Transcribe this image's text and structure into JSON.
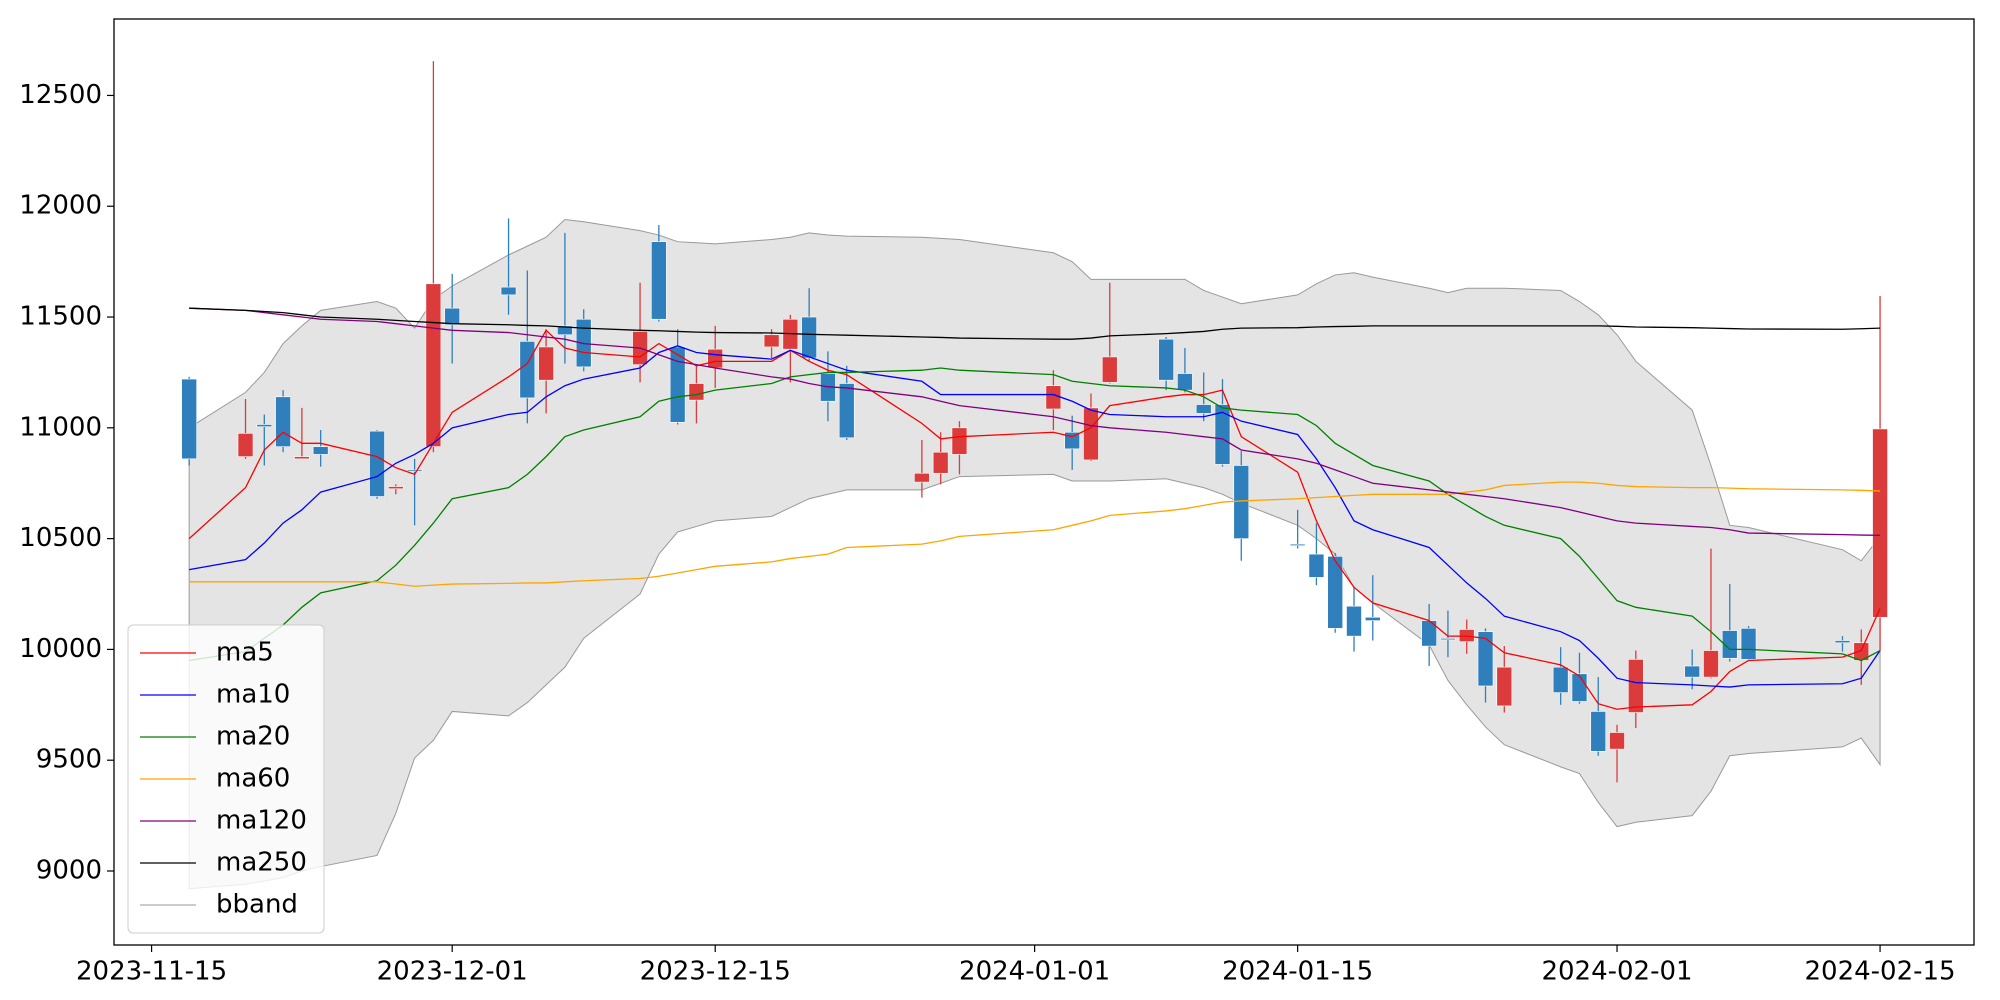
{
  "chart_data": {
    "type": "candlestick",
    "x": [
      "2023-11-17",
      "2023-11-20",
      "2023-11-21",
      "2023-11-22",
      "2023-11-23",
      "2023-11-24",
      "2023-11-27",
      "2023-11-28",
      "2023-11-29",
      "2023-11-30",
      "2023-12-01",
      "2023-12-04",
      "2023-12-05",
      "2023-12-06",
      "2023-12-07",
      "2023-12-08",
      "2023-12-11",
      "2023-12-12",
      "2023-12-13",
      "2023-12-14",
      "2023-12-15",
      "2023-12-18",
      "2023-12-19",
      "2023-12-20",
      "2023-12-21",
      "2023-12-22",
      "2023-12-26",
      "2023-12-27",
      "2023-12-28",
      "2024-01-02",
      "2024-01-03",
      "2024-01-04",
      "2024-01-05",
      "2024-01-08",
      "2024-01-09",
      "2024-01-10",
      "2024-01-11",
      "2024-01-12",
      "2024-01-15",
      "2024-01-16",
      "2024-01-17",
      "2024-01-18",
      "2024-01-19",
      "2024-01-22",
      "2024-01-23",
      "2024-01-24",
      "2024-01-25",
      "2024-01-26",
      "2024-01-29",
      "2024-01-30",
      "2024-01-31",
      "2024-02-01",
      "2024-02-02",
      "2024-02-05",
      "2024-02-06",
      "2024-02-07",
      "2024-02-08",
      "2024-02-13",
      "2024-02-14",
      "2024-02-15"
    ],
    "open": [
      11220,
      10870,
      11015,
      11140,
      10860,
      10915,
      10985,
      10725,
      10810,
      10915,
      11540,
      11635,
      11390,
      11215,
      11460,
      11490,
      11285,
      11840,
      11365,
      11125,
      11270,
      11365,
      11355,
      11500,
      11245,
      11200,
      10755,
      10795,
      10880,
      11085,
      10980,
      10855,
      11205,
      11400,
      11245,
      11105,
      11105,
      10830,
      10475,
      10430,
      10420,
      10195,
      10145,
      10130,
      10050,
      10035,
      10080,
      9745,
      9920,
      9890,
      9720,
      9550,
      9715,
      9925,
      9875,
      10085,
      10095,
      10040,
      9950,
      10145
    ],
    "high": [
      11230,
      11130,
      11060,
      11170,
      11090,
      10990,
      10990,
      10745,
      10860,
      12655,
      11695,
      11945,
      11710,
      11445,
      11880,
      11535,
      11655,
      11915,
      11445,
      11285,
      11460,
      11445,
      11510,
      11630,
      11345,
      11280,
      10945,
      10980,
      11030,
      11260,
      11055,
      11155,
      11655,
      11410,
      11360,
      11250,
      11220,
      10895,
      10630,
      10570,
      10435,
      10285,
      10335,
      10205,
      10175,
      10135,
      10095,
      10015,
      10010,
      9985,
      9875,
      9660,
      9995,
      10000,
      10455,
      10295,
      10105,
      10060,
      10090,
      11595
    ],
    "low": [
      10830,
      10860,
      10830,
      10890,
      10860,
      10825,
      10680,
      10700,
      10560,
      10890,
      11290,
      11510,
      11020,
      11065,
      11290,
      11255,
      11205,
      11480,
      11015,
      11020,
      11180,
      11315,
      11205,
      11300,
      11030,
      10945,
      10685,
      10745,
      10790,
      10990,
      10810,
      10850,
      11200,
      11170,
      11160,
      11030,
      10825,
      10400,
      10455,
      10290,
      10075,
      9990,
      10040,
      9925,
      9965,
      9980,
      9760,
      9715,
      9750,
      9755,
      9520,
      9400,
      9645,
      9820,
      9870,
      9945,
      9950,
      9990,
      9840,
      9995
    ],
    "close": [
      10860,
      10975,
      11005,
      10915,
      10870,
      10880,
      10690,
      10735,
      10805,
      11650,
      11465,
      11600,
      11135,
      11365,
      11420,
      11275,
      11435,
      11490,
      11025,
      11200,
      11355,
      11420,
      11490,
      11315,
      11120,
      10955,
      10795,
      10890,
      11000,
      11190,
      10905,
      11090,
      11320,
      11215,
      11170,
      11065,
      10835,
      10500,
      10470,
      10325,
      10095,
      10060,
      10130,
      10015,
      10045,
      10090,
      9835,
      9920,
      9805,
      9765,
      9540,
      9625,
      9955,
      9875,
      9995,
      9960,
      9955,
      10030,
      10030,
      10995
    ],
    "up_color": "#db3b3b",
    "down_color": "#2f7fbd",
    "series": [
      {
        "name": "ma5",
        "color": "#ff0000",
        "values": [
          10500,
          10730,
          10900,
          10980,
          10930,
          10930,
          10870,
          10820,
          10790,
          10930,
          11070,
          11230,
          11290,
          11440,
          11360,
          11340,
          11320,
          11380,
          11330,
          11280,
          11300,
          11300,
          11350,
          11300,
          11260,
          11240,
          11020,
          10950,
          10960,
          10980,
          10960,
          11000,
          11100,
          11140,
          11150,
          11150,
          11170,
          10960,
          10800,
          10580,
          10400,
          10280,
          10210,
          10130,
          10060,
          10060,
          10050,
          9985,
          9930,
          9880,
          9755,
          9730,
          9740,
          9750,
          9810,
          9900,
          9950,
          9965,
          9995,
          10185
        ]
      },
      {
        "name": "ma10",
        "color": "#0000ff",
        "values": [
          10360,
          10405,
          10480,
          10570,
          10630,
          10710,
          10780,
          10840,
          10880,
          10930,
          11000,
          11060,
          11070,
          11140,
          11190,
          11220,
          11270,
          11340,
          11370,
          11340,
          11330,
          11310,
          11350,
          11320,
          11290,
          11260,
          11210,
          11150,
          11150,
          11150,
          11120,
          11080,
          11060,
          11050,
          11050,
          11050,
          11070,
          11030,
          10970,
          10860,
          10730,
          10580,
          10540,
          10460,
          10380,
          10300,
          10230,
          10150,
          10080,
          10040,
          9960,
          9870,
          9850,
          9840,
          9835,
          9830,
          9840,
          9845,
          9870,
          9995
        ]
      },
      {
        "name": "ma20",
        "color": "#008000",
        "values": [
          9950,
          9990,
          10050,
          10110,
          10190,
          10255,
          10310,
          10380,
          10470,
          10570,
          10680,
          10730,
          10790,
          10870,
          10960,
          10990,
          11050,
          11120,
          11140,
          11150,
          11170,
          11200,
          11230,
          11240,
          11250,
          11250,
          11260,
          11270,
          11260,
          11240,
          11210,
          11200,
          11190,
          11180,
          11170,
          11140,
          11090,
          11080,
          11060,
          11010,
          10930,
          10880,
          10830,
          10760,
          10700,
          10650,
          10600,
          10560,
          10500,
          10420,
          10320,
          10220,
          10190,
          10150,
          10080,
          10000,
          10000,
          9980,
          9950,
          9995
        ]
      },
      {
        "name": "ma60",
        "color": "#ffa500",
        "values": [
          10305,
          10305,
          10305,
          10305,
          10305,
          10305,
          10305,
          10295,
          10285,
          10290,
          10295,
          10298,
          10300,
          10300,
          10305,
          10310,
          10320,
          10330,
          10345,
          10360,
          10375,
          10395,
          10410,
          10420,
          10430,
          10460,
          10475,
          10490,
          10510,
          10540,
          10560,
          10580,
          10605,
          10625,
          10635,
          10650,
          10665,
          10670,
          10680,
          10685,
          10690,
          10695,
          10700,
          10700,
          10700,
          10710,
          10720,
          10740,
          10755,
          10755,
          10750,
          10740,
          10735,
          10730,
          10730,
          10728,
          10725,
          10720,
          10718,
          10715
        ]
      },
      {
        "name": "ma120",
        "color": "#800080",
        "values": [
          11540,
          11530,
          11520,
          11510,
          11500,
          11490,
          11480,
          11470,
          11460,
          11450,
          11440,
          11430,
          11420,
          11410,
          11400,
          11380,
          11360,
          11330,
          11300,
          11285,
          11270,
          11230,
          11220,
          11200,
          11185,
          11180,
          11140,
          11120,
          11100,
          11050,
          11030,
          11010,
          11000,
          10980,
          10970,
          10960,
          10950,
          10900,
          10860,
          10840,
          10810,
          10780,
          10750,
          10720,
          10710,
          10700,
          10690,
          10680,
          10640,
          10620,
          10600,
          10580,
          10570,
          10555,
          10550,
          10540,
          10525,
          10518,
          10516,
          10515
        ]
      },
      {
        "name": "ma250",
        "color": "#000000",
        "values": [
          11540,
          11530,
          11525,
          11520,
          11510,
          11500,
          11490,
          11485,
          11480,
          11475,
          11470,
          11465,
          11462,
          11460,
          11455,
          11450,
          11440,
          11438,
          11435,
          11432,
          11430,
          11428,
          11425,
          11422,
          11420,
          11418,
          11410,
          11408,
          11405,
          11400,
          11400,
          11405,
          11415,
          11425,
          11430,
          11435,
          11445,
          11450,
          11452,
          11455,
          11457,
          11458,
          11460,
          11460,
          11460,
          11460,
          11460,
          11460,
          11460,
          11460,
          11460,
          11458,
          11455,
          11452,
          11450,
          11448,
          11446,
          11445,
          11447,
          11450
        ]
      }
    ],
    "band": {
      "name": "bband",
      "color": "#e4e4e4",
      "edge_color": "#999999",
      "upper": [
        11000,
        11160,
        11250,
        11380,
        11460,
        11530,
        11570,
        11540,
        11450,
        11580,
        11640,
        11780,
        11820,
        11860,
        11940,
        11930,
        11890,
        11870,
        11840,
        11835,
        11830,
        11850,
        11860,
        11880,
        11870,
        11865,
        11860,
        11855,
        11850,
        11790,
        11750,
        11670,
        11670,
        11670,
        11670,
        11620,
        11590,
        11560,
        11600,
        11650,
        11690,
        11700,
        11680,
        11630,
        11610,
        11630,
        11630,
        11630,
        11620,
        11570,
        11510,
        11420,
        11300,
        11080,
        10830,
        10560,
        10550,
        10450,
        10400,
        10510
      ],
      "lower": [
        8920,
        8940,
        8955,
        8970,
        9000,
        9020,
        9070,
        9260,
        9510,
        9590,
        9720,
        9700,
        9760,
        9840,
        9920,
        10050,
        10250,
        10430,
        10530,
        10555,
        10580,
        10600,
        10640,
        10680,
        10700,
        10720,
        10720,
        10750,
        10780,
        10790,
        10760,
        10760,
        10760,
        10770,
        10750,
        10730,
        10700,
        10660,
        10560,
        10500,
        10430,
        10280,
        10210,
        10020,
        9860,
        9750,
        9650,
        9570,
        9470,
        9440,
        9310,
        9200,
        9220,
        9250,
        9360,
        9520,
        9530,
        9560,
        9600,
        9480
      ]
    },
    "xlim": [
      "2023-11-13",
      "2024-02-20"
    ],
    "xticks": [
      "2023-11-15",
      "2023-12-01",
      "2023-12-15",
      "2024-01-01",
      "2024-01-15",
      "2024-02-01",
      "2024-02-15"
    ],
    "ylim": [
      8666,
      12845
    ],
    "yticks": [
      9000,
      9500,
      10000,
      10500,
      11000,
      11500,
      12000,
      12500
    ],
    "legend": "lower left"
  }
}
